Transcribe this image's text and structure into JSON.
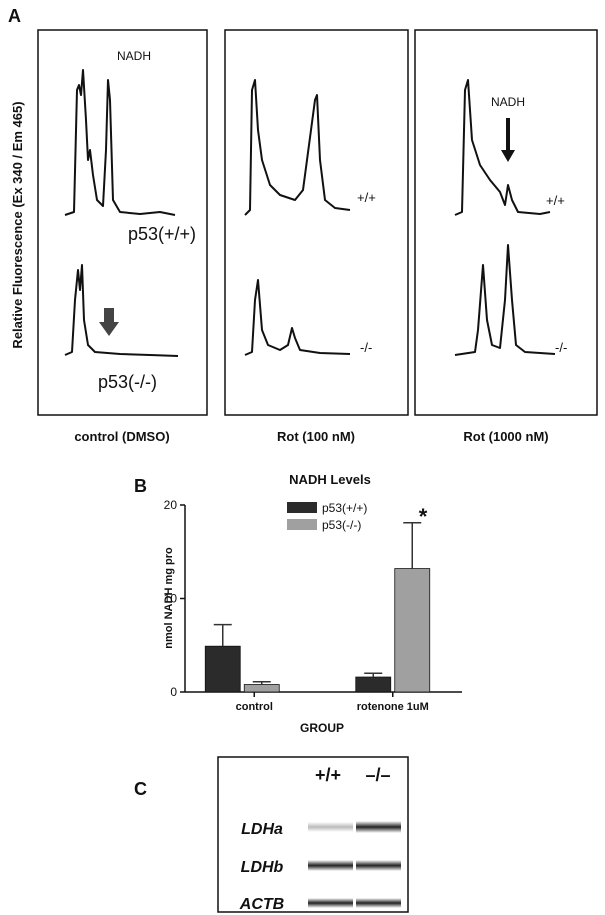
{
  "panel_labels": [
    "A",
    "B",
    "C"
  ],
  "panel_a": {
    "y_label": "Relative Fluorescence (Ex 340 / Em 465)",
    "columns": [
      "control (DMSO)",
      "Rot (100 nM)",
      "Rot (1000 nM)"
    ],
    "control_peak_label": "NADH",
    "control_top_label": "p53(+/+)",
    "control_bottom_label": "p53(-/-)",
    "rot100_top_label": "+/+",
    "rot100_bottom_label": "-/-",
    "rot1000_peak_label": "NADH",
    "rot1000_top_label": "+/+",
    "rot1000_bottom_label": "-/-"
  },
  "chart_data": {
    "type": "bar",
    "title": "NADH Levels",
    "y_label": "nmol NADH mg pro",
    "x_label": "GROUP",
    "categories": [
      "control",
      "rotenone 1uM"
    ],
    "series": [
      {
        "name": "p53(+/+)",
        "color": "#2b2b2b",
        "values": [
          4.9,
          1.6
        ],
        "errors": [
          2.3,
          0.4
        ]
      },
      {
        "name": "p53(-/-)",
        "color": "#a0a0a0",
        "values": [
          0.8,
          13.2
        ],
        "errors": [
          0.3,
          4.9
        ]
      }
    ],
    "ylim": [
      0,
      20
    ],
    "yticks": [
      0,
      10,
      20
    ],
    "annotation": "*"
  },
  "panel_c": {
    "columns": [
      "+/+",
      "–/–"
    ],
    "rows": [
      "LDHa",
      "LDHb",
      "ACTB"
    ]
  }
}
